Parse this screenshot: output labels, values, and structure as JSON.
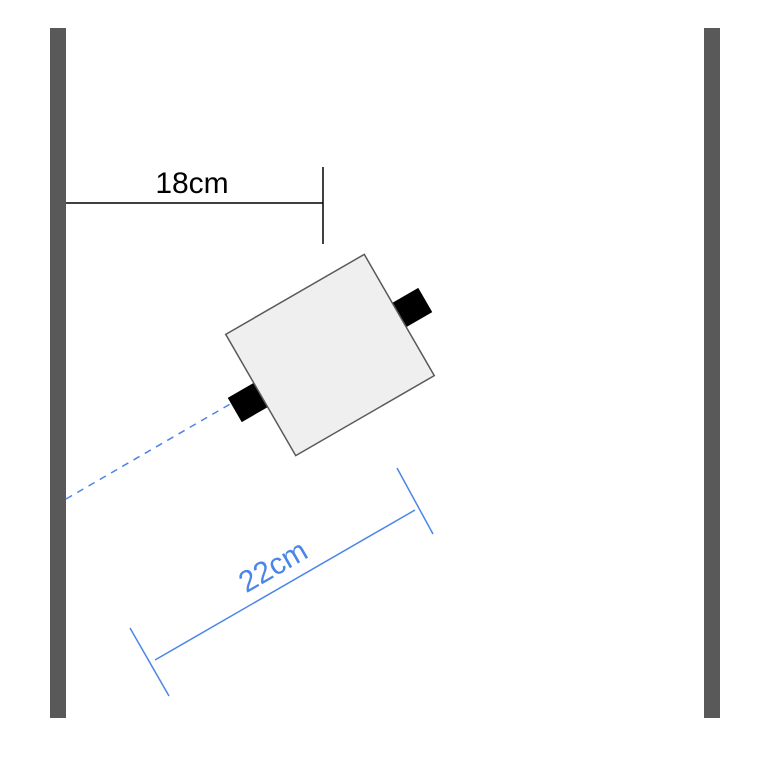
{
  "labels": {
    "horizontal_distance": "18cm",
    "sensor_distance": "22cm"
  },
  "colors": {
    "background": "#ffffff",
    "wall": "#595959",
    "dimension_line": "#000000",
    "sensor_dimension": "#4a86e8",
    "robot_body_fill": "#efefef",
    "robot_body_stroke": "#595959",
    "wheel": "#000000"
  }
}
